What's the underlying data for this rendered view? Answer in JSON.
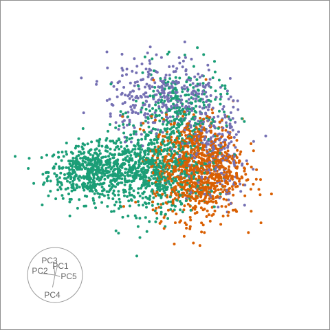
{
  "chart_data": {
    "type": "scatter",
    "title": "",
    "xlabel": "",
    "ylabel": "",
    "grid": false,
    "legend": "none",
    "xlim": [
      -1.1,
      1.1
    ],
    "ylim": [
      -1.1,
      1.1
    ],
    "series": [
      {
        "color": "#1b9e77",
        "cluster_seeds": [
          {
            "x": -0.55,
            "y": -0.05,
            "sx": 0.17,
            "sy": 0.1,
            "n": 520
          },
          {
            "x": -0.1,
            "y": -0.05,
            "sx": 0.2,
            "sy": 0.16,
            "n": 700
          },
          {
            "x": 0.1,
            "y": 0.4,
            "sx": 0.17,
            "sy": 0.17,
            "n": 300
          }
        ]
      },
      {
        "color": "#d95f02",
        "cluster_seeds": [
          {
            "x": 0.25,
            "y": -0.03,
            "sx": 0.17,
            "sy": 0.19,
            "n": 950
          }
        ]
      },
      {
        "color": "#7570b3",
        "cluster_seeds": [
          {
            "x": -0.02,
            "y": 0.53,
            "sx": 0.21,
            "sy": 0.15,
            "n": 330
          },
          {
            "x": 0.38,
            "y": 0.1,
            "sx": 0.13,
            "sy": 0.2,
            "n": 230
          }
        ]
      }
    ],
    "axes_glyph": {
      "labels": [
        "PC3",
        "PC1",
        "PC2",
        "PC5",
        "PC4"
      ],
      "loadings": [
        {
          "dx": -0.1,
          "dy": 0.8
        },
        {
          "dx": 0.15,
          "dy": 0.55
        },
        {
          "dx": -0.85,
          "dy": 0.1
        },
        {
          "dx": 0.3,
          "dy": -0.1
        },
        {
          "dx": -0.15,
          "dy": -0.75
        }
      ]
    }
  }
}
